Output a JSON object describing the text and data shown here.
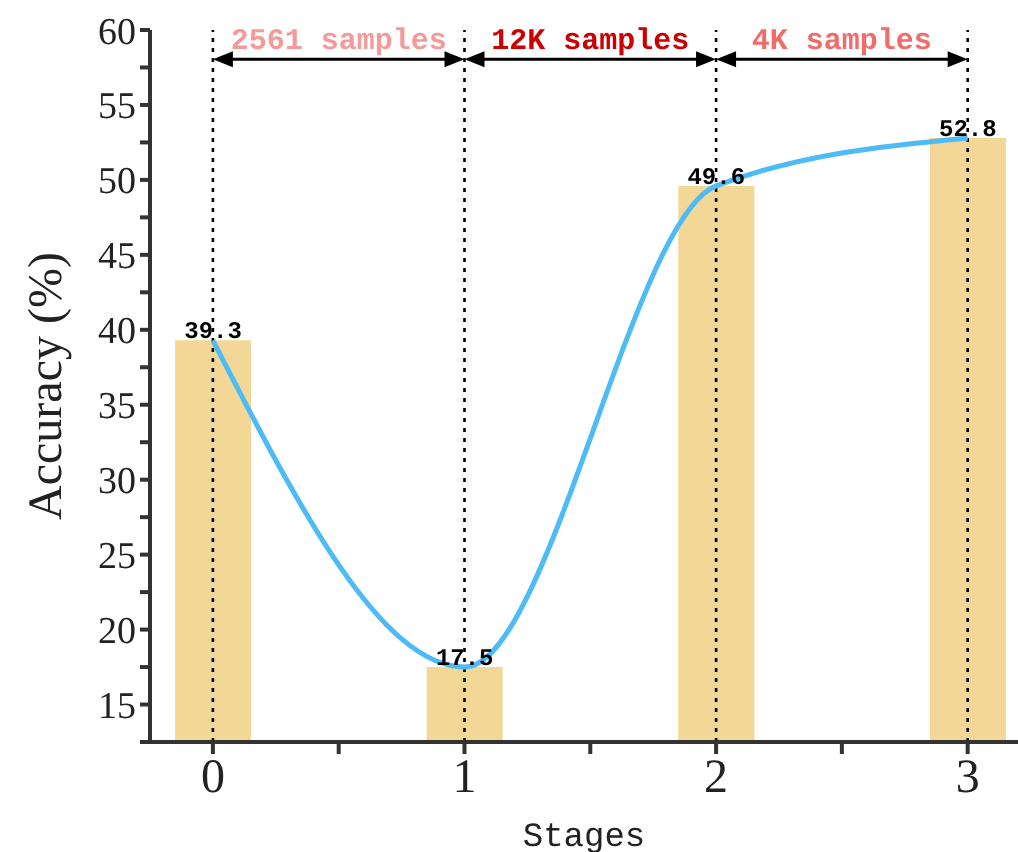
{
  "chart_data": {
    "type": "bar",
    "xlabel": "Stages",
    "ylabel": "Accuracy (%)",
    "x": [
      0,
      1,
      2,
      3
    ],
    "xlim": [
      -0.25,
      3.2
    ],
    "xticks": [
      0,
      {
        "value": 0.5,
        "label": null
      },
      1,
      {
        "value": 1.5,
        "label": null
      },
      2,
      {
        "value": 2.5,
        "label": null
      },
      3
    ],
    "ylim": [
      12.5,
      60
    ],
    "yticks": [
      {
        "value": 12.5,
        "label": null
      },
      15,
      {
        "value": 17.5,
        "label": null
      },
      20,
      {
        "value": 22.5,
        "label": null
      },
      25,
      {
        "value": 27.5,
        "label": null
      },
      30,
      {
        "value": 32.5,
        "label": null
      },
      35,
      {
        "value": 37.5,
        "label": null
      },
      40,
      {
        "value": 42.5,
        "label": null
      },
      45,
      {
        "value": 47.5,
        "label": null
      },
      50,
      {
        "value": 52.5,
        "label": null
      },
      55,
      {
        "value": 57.5,
        "label": null
      },
      60
    ],
    "series": [
      {
        "color": "#f2d796",
        "values": [
          39.3,
          17.5,
          49.6,
          52.8
        ]
      },
      {
        "type": "line",
        "color": "#4dbbf5",
        "values": [
          39.3,
          17.5,
          49.6,
          52.8
        ],
        "value_labels": [
          null,
          null,
          null,
          null
        ]
      }
    ],
    "data_labels": true,
    "grid": false,
    "legend": false,
    "marker": "none",
    "line_style": "solid",
    "ref_lines": [
      {
        "axis": "x",
        "value": 0,
        "line_style": "dotted",
        "color": "#000000"
      },
      {
        "axis": "x",
        "value": 1,
        "line_style": "dotted",
        "color": "#000000"
      },
      {
        "axis": "x",
        "value": 2,
        "line_style": "dotted",
        "color": "#000000"
      },
      {
        "axis": "x",
        "value": 3,
        "line_style": "dotted",
        "color": "#000000"
      }
    ],
    "annotations": [
      "2561 samples",
      "12K samples",
      "4K samples"
    ]
  }
}
